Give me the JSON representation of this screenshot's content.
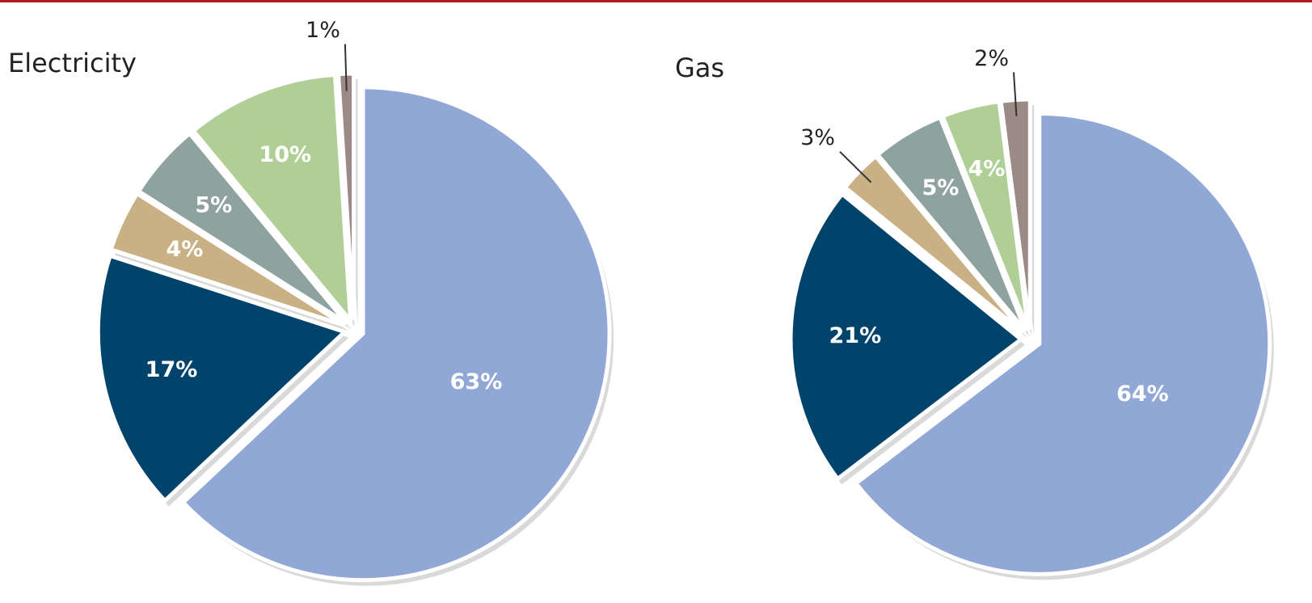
{
  "chart_data": [
    {
      "type": "pie",
      "title": "Electricity",
      "values": [
        63,
        17,
        4,
        5,
        10,
        1
      ],
      "value_labels": [
        "63%",
        "17%",
        "4%",
        "5%",
        "10%",
        "1%"
      ],
      "colors": [
        "#91a7d6",
        "#00436b",
        "#c9b185",
        "#8ea3a0",
        "#b0cf96",
        "#9b8a85"
      ]
    },
    {
      "type": "pie",
      "title": "Gas",
      "values": [
        64,
        21,
        3,
        5,
        4,
        2
      ],
      "value_labels": [
        "64%",
        "21%",
        "3%",
        "5%",
        "4%",
        "2%"
      ],
      "colors": [
        "#91a7d6",
        "#00436b",
        "#c9b185",
        "#8ea3a0",
        "#b0cf96",
        "#9b8a85"
      ]
    }
  ]
}
